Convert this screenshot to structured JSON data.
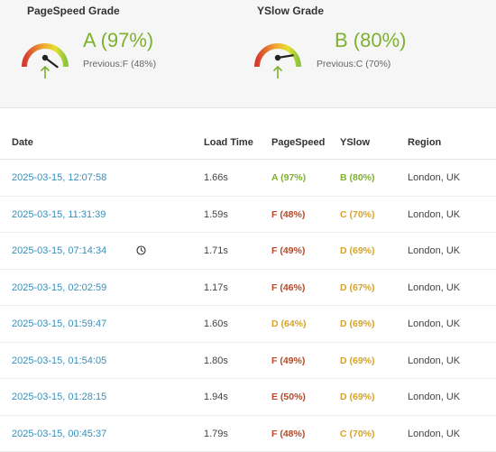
{
  "grades": {
    "pagespeed": {
      "title": "PageSpeed Grade",
      "value": "A (97%)",
      "previous": "Previous:F (48%)",
      "percent": 97,
      "color": "#7db12f"
    },
    "yslow": {
      "title": "YSlow Grade",
      "value": "B (80%)",
      "previous": "Previous:C (70%)",
      "percent": 80,
      "color": "#7db12f"
    }
  },
  "colors": {
    "A": "#7db12f",
    "B": "#7db12f",
    "C": "#d6a326",
    "D": "#d6a326",
    "E": "#b24a2b",
    "F": "#b24a2b",
    "link": "#3a8fb7"
  },
  "history": {
    "headers": {
      "date": "Date",
      "load_time": "Load Time",
      "pagespeed": "PageSpeed",
      "yslow": "YSlow",
      "region": "Region"
    },
    "rows": [
      {
        "date": "2025-03-15, 12:07:58",
        "load_time": "1.66s",
        "pagespeed": "A (97%)",
        "yslow": "B (80%)",
        "region": "London, UK",
        "ps_grade": "A",
        "ys_grade": "B"
      },
      {
        "date": "2025-03-15, 11:31:39",
        "load_time": "1.59s",
        "pagespeed": "F (48%)",
        "yslow": "C (70%)",
        "region": "London, UK",
        "ps_grade": "F",
        "ys_grade": "C"
      },
      {
        "date": "2025-03-15, 07:14:34",
        "load_time": "1.71s",
        "pagespeed": "F (49%)",
        "yslow": "D (69%)",
        "region": "London, UK",
        "ps_grade": "F",
        "ys_grade": "D",
        "clock_icon": "clock-icon"
      },
      {
        "date": "2025-03-15, 02:02:59",
        "load_time": "1.17s",
        "pagespeed": "F (46%)",
        "yslow": "D (67%)",
        "region": "London, UK",
        "ps_grade": "F",
        "ys_grade": "D"
      },
      {
        "date": "2025-03-15, 01:59:47",
        "load_time": "1.60s",
        "pagespeed": "D (64%)",
        "yslow": "D (69%)",
        "region": "London, UK",
        "ps_grade": "D",
        "ys_grade": "D"
      },
      {
        "date": "2025-03-15, 01:54:05",
        "load_time": "1.80s",
        "pagespeed": "F (49%)",
        "yslow": "D (69%)",
        "region": "London, UK",
        "ps_grade": "F",
        "ys_grade": "D"
      },
      {
        "date": "2025-03-15, 01:28:15",
        "load_time": "1.94s",
        "pagespeed": "E (50%)",
        "yslow": "D (69%)",
        "region": "London, UK",
        "ps_grade": "E",
        "ys_grade": "D"
      },
      {
        "date": "2025-03-15, 00:45:37",
        "load_time": "1.79s",
        "pagespeed": "F (48%)",
        "yslow": "C (70%)",
        "region": "London, UK",
        "ps_grade": "F",
        "ys_grade": "C"
      }
    ]
  }
}
